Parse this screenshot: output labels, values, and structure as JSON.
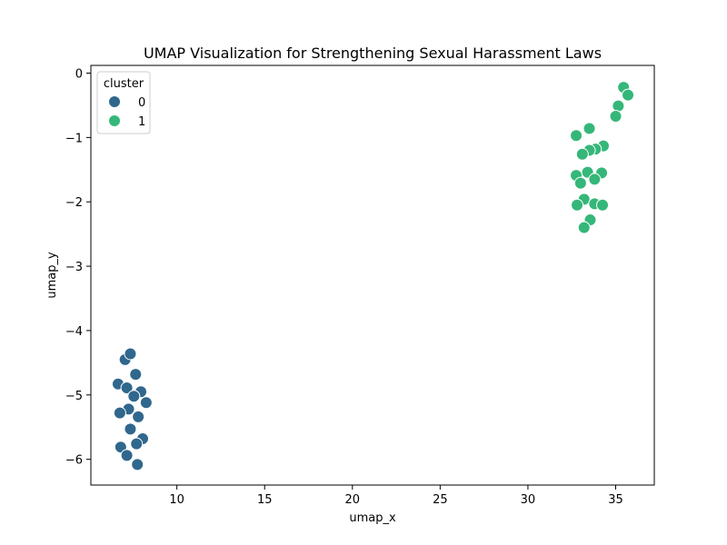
{
  "chart_data": {
    "type": "scatter",
    "title": "UMAP Visualization for Strengthening Sexual Harassment Laws",
    "xlabel": "umap_x",
    "ylabel": "umap_y",
    "xlim": [
      5.1,
      37.2
    ],
    "ylim": [
      -6.4,
      0.12
    ],
    "xticks": [
      10,
      15,
      20,
      25,
      30,
      35
    ],
    "yticks": [
      0,
      -1,
      -2,
      -3,
      -4,
      -5,
      -6
    ],
    "xtick_labels": [
      "10",
      "15",
      "20",
      "25",
      "30",
      "35"
    ],
    "ytick_labels": [
      "0",
      "−1",
      "−2",
      "−3",
      "−4",
      "−5",
      "−6"
    ],
    "grid": false,
    "legend": {
      "title": "cluster",
      "position": "top-left"
    },
    "series": [
      {
        "name": "0",
        "color": "#30678d",
        "points": [
          [
            7.05,
            -4.45
          ],
          [
            7.35,
            -4.36
          ],
          [
            7.65,
            -4.68
          ],
          [
            6.65,
            -4.83
          ],
          [
            7.15,
            -4.89
          ],
          [
            7.95,
            -4.95
          ],
          [
            7.55,
            -5.02
          ],
          [
            8.25,
            -5.12
          ],
          [
            7.25,
            -5.22
          ],
          [
            6.75,
            -5.28
          ],
          [
            7.8,
            -5.34
          ],
          [
            7.35,
            -5.53
          ],
          [
            8.05,
            -5.68
          ],
          [
            7.7,
            -5.76
          ],
          [
            6.8,
            -5.81
          ],
          [
            7.15,
            -5.94
          ],
          [
            7.75,
            -6.08
          ]
        ]
      },
      {
        "name": "1",
        "color": "#35b779",
        "points": [
          [
            35.45,
            -0.22
          ],
          [
            35.7,
            -0.34
          ],
          [
            35.15,
            -0.51
          ],
          [
            35.0,
            -0.67
          ],
          [
            33.5,
            -0.86
          ],
          [
            32.75,
            -0.97
          ],
          [
            34.3,
            -1.13
          ],
          [
            33.85,
            -1.18
          ],
          [
            33.5,
            -1.2
          ],
          [
            33.1,
            -1.26
          ],
          [
            33.4,
            -1.54
          ],
          [
            34.2,
            -1.55
          ],
          [
            32.75,
            -1.59
          ],
          [
            33.8,
            -1.65
          ],
          [
            33.0,
            -1.71
          ],
          [
            33.2,
            -1.96
          ],
          [
            33.8,
            -2.03
          ],
          [
            34.25,
            -2.05
          ],
          [
            32.8,
            -2.05
          ],
          [
            33.55,
            -2.28
          ],
          [
            33.2,
            -2.4
          ]
        ]
      }
    ]
  }
}
